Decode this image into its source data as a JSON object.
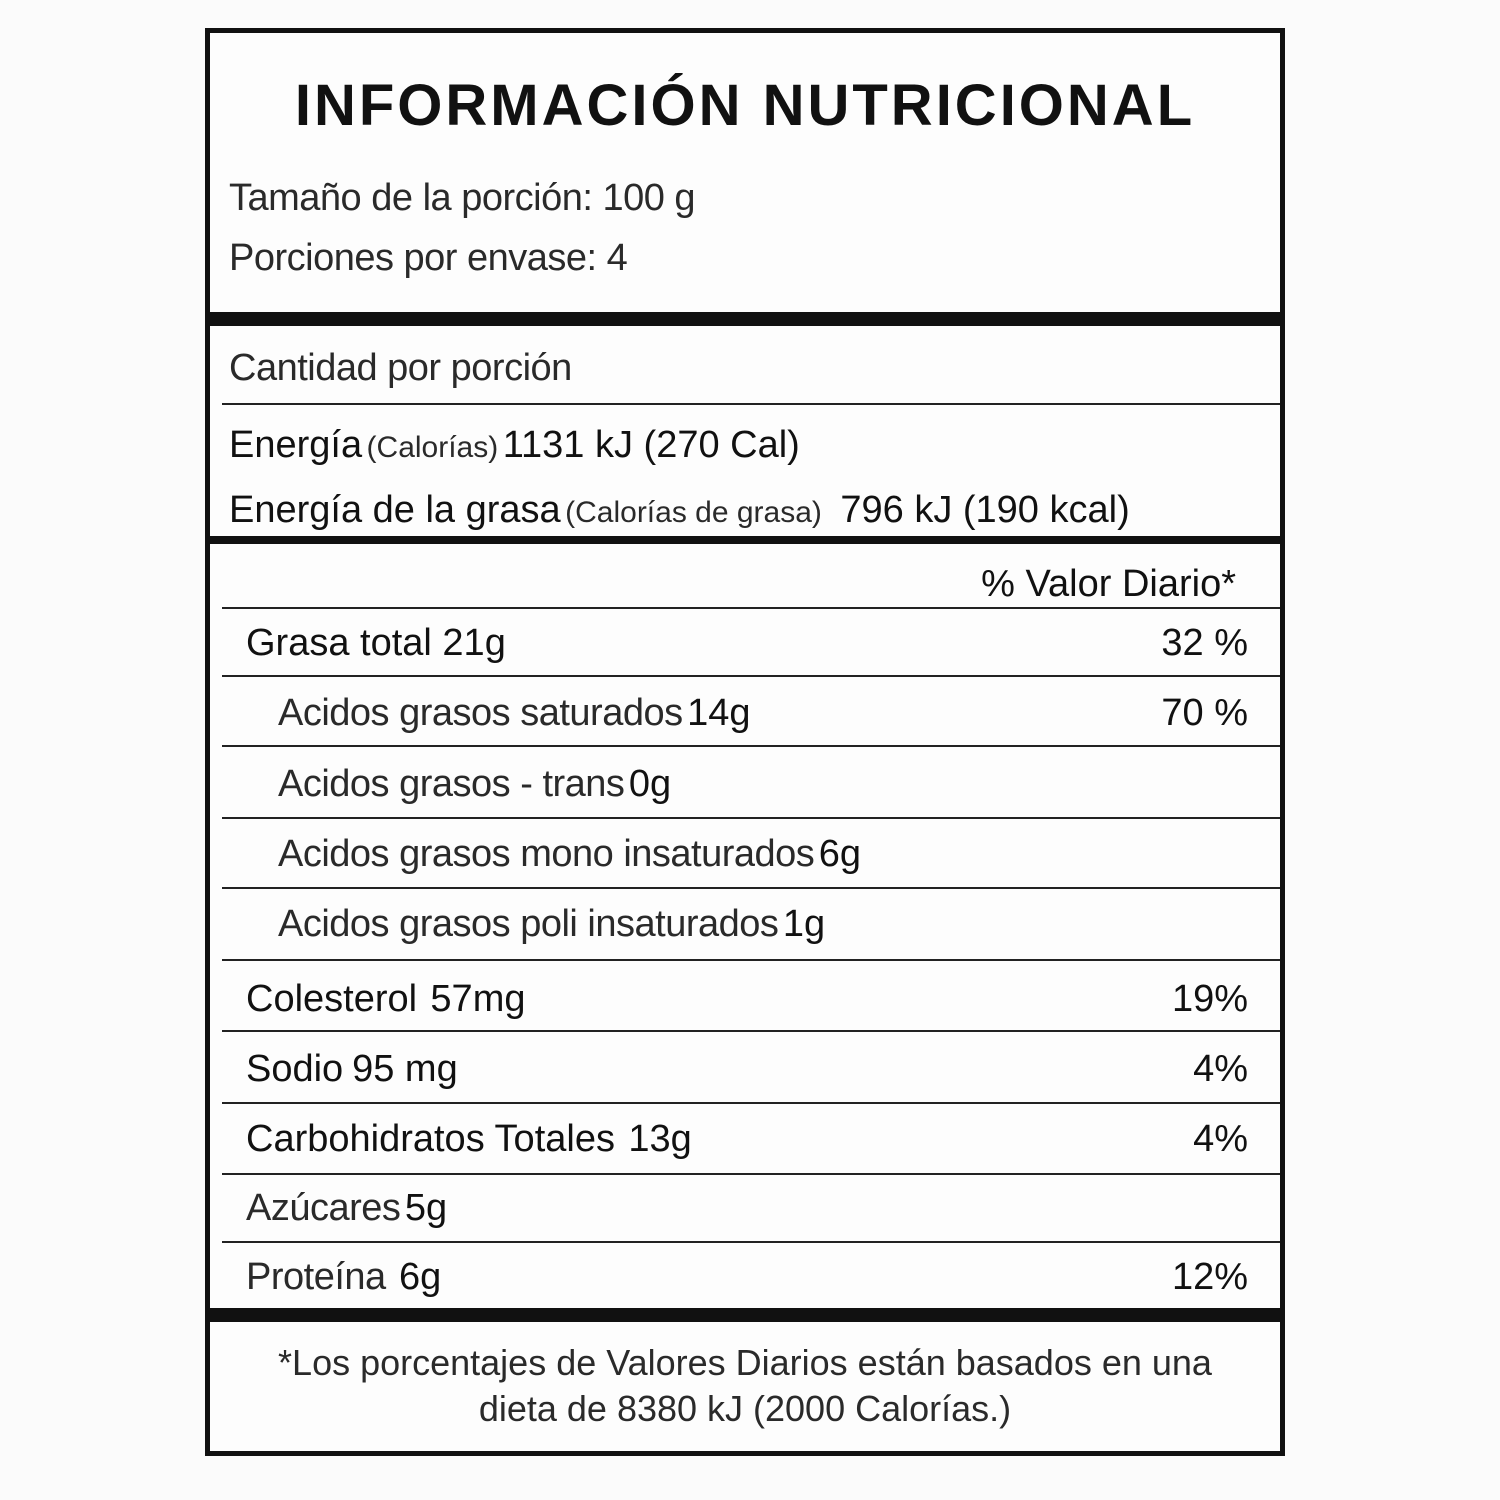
{
  "title": "INFORMACIÓN NUTRICIONAL",
  "serving_size": "Tamaño de la porción: 100 g",
  "servings_per_container": "Porciones por envase:  4",
  "amount_per_serving": "Cantidad por porción",
  "energy": {
    "label": "Energía",
    "sub": "(Calorías)",
    "value": "1131 kJ (270 Cal)"
  },
  "fat_energy": {
    "label": "Energía de la grasa",
    "sub": "(Calorías de grasa)",
    "value": "796 kJ (190 kcal)"
  },
  "daily_value_header": "% Valor Diario*",
  "nutrients": [
    {
      "label": "Grasa total 21g",
      "pct": "32 %"
    },
    {
      "label": "Acidos grasos saturados",
      "amount": "14g",
      "pct": "70 %"
    },
    {
      "label": "Acidos grasos - trans",
      "amount": "0g",
      "pct": ""
    },
    {
      "label": "Acidos grasos mono insaturados",
      "amount": "6g",
      "pct": ""
    },
    {
      "label": "Acidos grasos poli insaturados",
      "amount": "1g",
      "pct": ""
    },
    {
      "label": "Colesterol",
      "amount": "57mg",
      "pct": "19%"
    },
    {
      "label": "Sodio",
      "amount": "95 mg",
      "pct": "4%"
    },
    {
      "label": "Carbohidratos Totales",
      "amount": "13g",
      "pct": "4%"
    },
    {
      "label": "Azúcares",
      "amount": "5g",
      "pct": ""
    },
    {
      "label": "Proteína",
      "amount": "6g",
      "pct": "12%"
    }
  ],
  "footnote_line1": "*Los porcentajes de Valores Diarios están basados en una",
  "footnote_line2": "dieta de 8380 kJ (2000 Calorías.)"
}
